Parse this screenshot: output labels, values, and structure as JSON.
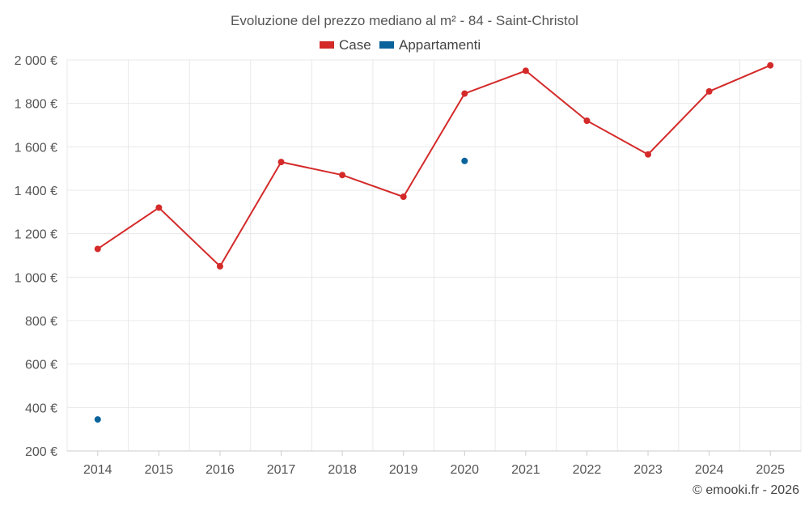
{
  "chart_data": {
    "type": "line",
    "title": "Evoluzione del prezzo mediano al m² - 84 - Saint-Christol",
    "categories": [
      "2014",
      "2015",
      "2016",
      "2017",
      "2018",
      "2019",
      "2020",
      "2021",
      "2022",
      "2023",
      "2024",
      "2025"
    ],
    "series": [
      {
        "name": "Case",
        "color": "#d42a2a",
        "values": [
          1130,
          1320,
          1050,
          1530,
          1470,
          1370,
          1845,
          1950,
          1720,
          1565,
          1855,
          1975
        ]
      },
      {
        "name": "Appartamenti",
        "color": "#0b639b",
        "values": [
          345,
          null,
          null,
          null,
          null,
          null,
          1535,
          null,
          null,
          null,
          null,
          null
        ]
      }
    ],
    "ylim": [
      200,
      2000
    ],
    "yticks": [
      200,
      400,
      600,
      800,
      1000,
      1200,
      1400,
      1600,
      1800,
      2000
    ],
    "ytick_labels": [
      "200 €",
      "400 €",
      "600 €",
      "800 €",
      "1 000 €",
      "1 200 €",
      "1 400 €",
      "1 600 €",
      "1 800 €",
      "2 000 €"
    ],
    "xlabel": "",
    "ylabel": "",
    "grid": true,
    "legend_position": "top-center"
  },
  "footer": {
    "credit": "© emooki.fr - 2026"
  }
}
